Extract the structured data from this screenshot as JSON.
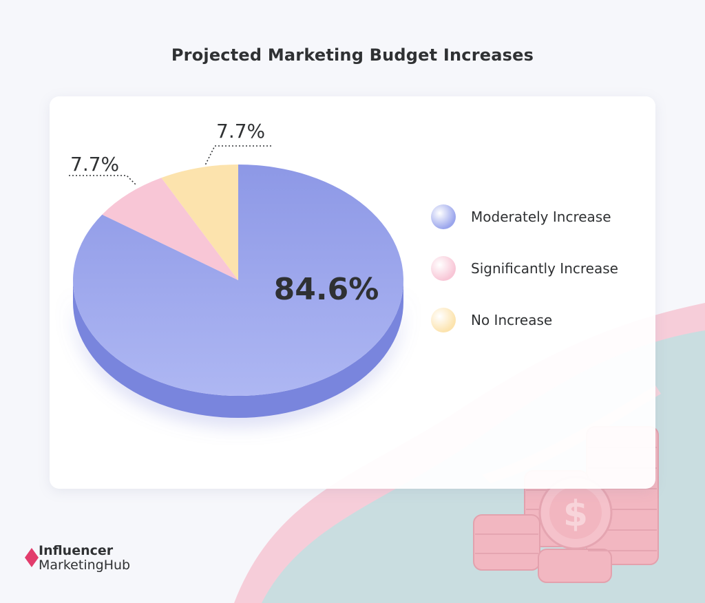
{
  "header": {
    "title": "Projected Marketing Budget Increases"
  },
  "chart_data": {
    "type": "pie",
    "title": "Projected Marketing Budget Increases",
    "categories": [
      "Moderately Increase",
      "Significantly Increase",
      "No Increase"
    ],
    "values": [
      84.6,
      7.7,
      7.7
    ],
    "labels": [
      "84.6%",
      "7.7%",
      "7.7%"
    ],
    "colors": [
      "#9aa5ec",
      "#f8c6d6",
      "#fce3ad"
    ],
    "legend_position": "right"
  },
  "branding": {
    "logo_line1": "Influencer",
    "logo_line2": "MarketingHub",
    "logo_color": "#e23c6c"
  }
}
